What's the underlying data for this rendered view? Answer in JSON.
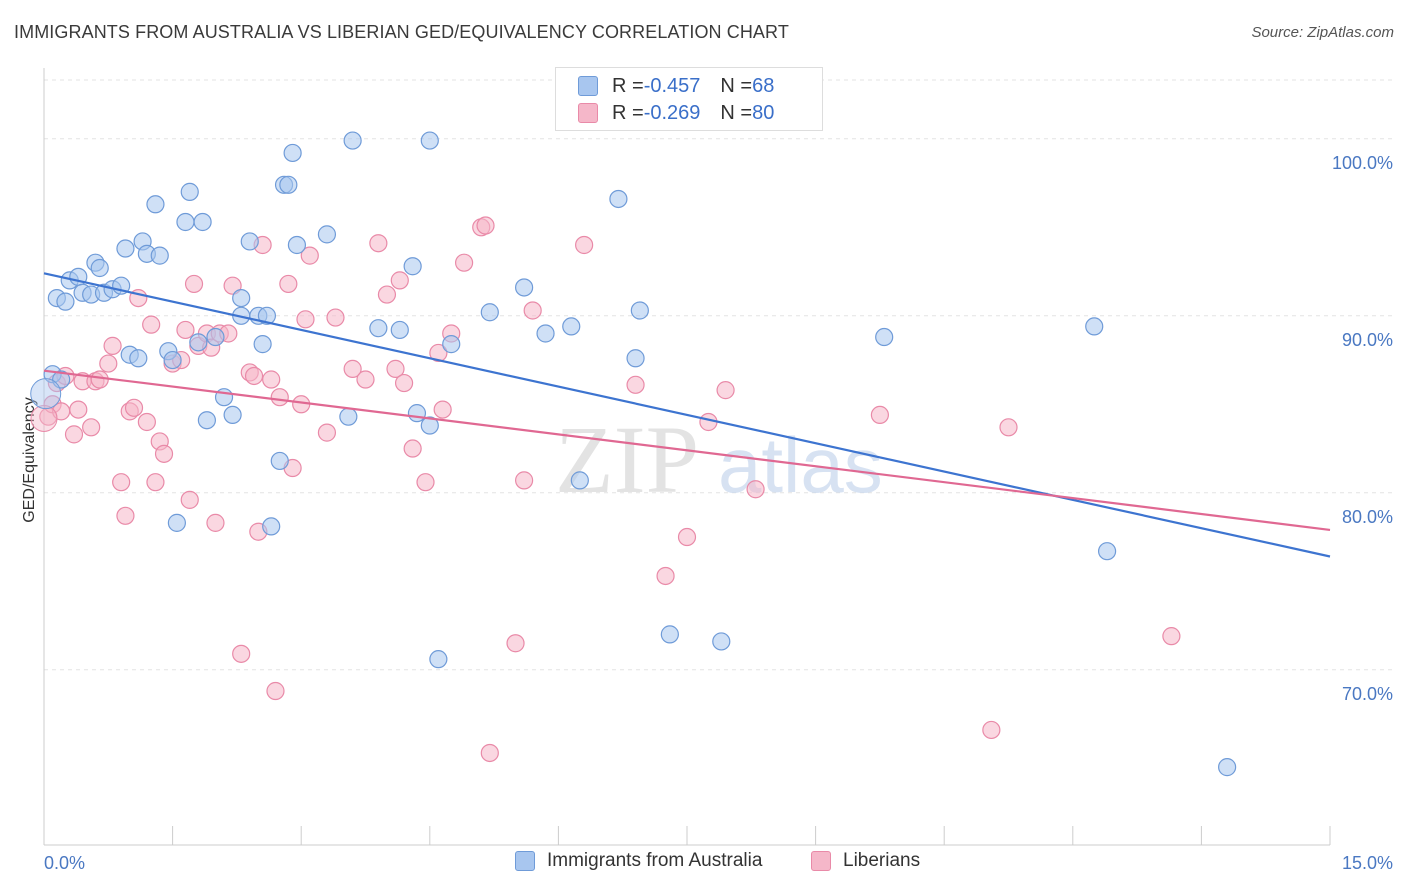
{
  "header": {
    "title": "IMMIGRANTS FROM AUSTRALIA VS LIBERIAN GED/EQUIVALENCY CORRELATION CHART",
    "source": "Source: ZipAtlas.com"
  },
  "watermark": {
    "zip": "ZIP",
    "atlas": "atlas"
  },
  "legend_top": [
    {
      "r_label": "R = ",
      "r_value": "-0.457",
      "n_label": "N = ",
      "n_value": "68"
    },
    {
      "r_label": "R = ",
      "r_value": "-0.269",
      "n_label": "N = ",
      "n_value": "80"
    }
  ],
  "legend_bottom": [
    {
      "label": "Immigrants from Australia"
    },
    {
      "label": "Liberians"
    }
  ],
  "colors": {
    "blue_fill": "#a8c6ef",
    "blue_stroke": "#6f9bd8",
    "blue_line": "#3d74d0",
    "pink_fill": "#f5b7c9",
    "pink_stroke": "#e98aa8",
    "pink_line": "#e06892",
    "tick_text": "#4a78c2",
    "grid": "#e3e3e3"
  },
  "chart_data": {
    "type": "scatter",
    "title": "IMMIGRANTS FROM AUSTRALIA VS LIBERIAN GED/EQUIVALENCY CORRELATION CHART",
    "xlabel": "",
    "ylabel": "GED/Equivalency",
    "xlim": [
      0,
      15
    ],
    "ylim": [
      60.1,
      104
    ],
    "x_tick_labels": [
      "0.0%",
      "15.0%"
    ],
    "y_ticks": [
      {
        "value": 100,
        "label": "100.0%"
      },
      {
        "value": 90,
        "label": "90.0%"
      },
      {
        "value": 80,
        "label": "80.0%"
      },
      {
        "value": 70,
        "label": "70.0%"
      }
    ],
    "series": [
      {
        "name": "Immigrants from Australia",
        "r": -0.457,
        "n": 68,
        "trend": {
          "x": [
            0,
            15
          ],
          "y": [
            92.4,
            76.4
          ]
        },
        "points": [
          [
            0.1,
            86.7
          ],
          [
            0.2,
            86.4
          ],
          [
            0.15,
            91.0
          ],
          [
            0.25,
            90.8
          ],
          [
            0.3,
            92.0
          ],
          [
            0.4,
            92.2
          ],
          [
            0.45,
            91.3
          ],
          [
            0.55,
            91.2
          ],
          [
            0.6,
            93.0
          ],
          [
            0.65,
            92.7
          ],
          [
            0.7,
            91.3
          ],
          [
            0.8,
            91.5
          ],
          [
            0.9,
            91.7
          ],
          [
            0.95,
            93.8
          ],
          [
            1.0,
            87.8
          ],
          [
            1.1,
            87.6
          ],
          [
            1.15,
            94.2
          ],
          [
            1.2,
            93.5
          ],
          [
            1.3,
            96.3
          ],
          [
            1.35,
            93.4
          ],
          [
            1.45,
            88.0
          ],
          [
            1.5,
            87.5
          ],
          [
            1.55,
            78.3
          ],
          [
            1.65,
            95.3
          ],
          [
            1.7,
            97.0
          ],
          [
            1.8,
            88.5
          ],
          [
            1.85,
            95.3
          ],
          [
            1.9,
            84.1
          ],
          [
            2.0,
            88.8
          ],
          [
            2.1,
            85.4
          ],
          [
            2.2,
            84.4
          ],
          [
            2.3,
            90.0
          ],
          [
            2.3,
            91.0
          ],
          [
            2.4,
            94.2
          ],
          [
            2.5,
            90.0
          ],
          [
            2.55,
            88.4
          ],
          [
            2.6,
            90.0
          ],
          [
            2.65,
            78.1
          ],
          [
            2.75,
            81.8
          ],
          [
            2.8,
            97.4
          ],
          [
            2.85,
            97.4
          ],
          [
            2.9,
            99.2
          ],
          [
            2.95,
            94.0
          ],
          [
            3.3,
            94.6
          ],
          [
            3.55,
            84.3
          ],
          [
            3.6,
            99.9
          ],
          [
            3.9,
            89.3
          ],
          [
            4.15,
            89.2
          ],
          [
            4.3,
            92.8
          ],
          [
            4.35,
            84.5
          ],
          [
            4.5,
            83.8
          ],
          [
            4.5,
            99.9
          ],
          [
            4.6,
            70.6
          ],
          [
            4.75,
            88.4
          ],
          [
            5.2,
            90.2
          ],
          [
            5.6,
            91.6
          ],
          [
            5.85,
            89.0
          ],
          [
            6.15,
            89.4
          ],
          [
            6.25,
            80.7
          ],
          [
            6.7,
            96.6
          ],
          [
            6.9,
            87.6
          ],
          [
            6.95,
            90.3
          ],
          [
            7.3,
            72.0
          ],
          [
            7.9,
            71.6
          ],
          [
            9.8,
            88.8
          ],
          [
            12.25,
            89.4
          ],
          [
            12.4,
            76.7
          ],
          [
            13.8,
            64.5
          ]
        ]
      },
      {
        "name": "Liberians",
        "r": -0.269,
        "n": 80,
        "trend": {
          "x": [
            0,
            15
          ],
          "y": [
            86.9,
            77.9
          ]
        },
        "points": [
          [
            0.05,
            84.3
          ],
          [
            0.1,
            85.0
          ],
          [
            0.15,
            86.2
          ],
          [
            0.2,
            84.6
          ],
          [
            0.25,
            86.6
          ],
          [
            0.35,
            83.3
          ],
          [
            0.4,
            84.7
          ],
          [
            0.45,
            86.3
          ],
          [
            0.55,
            83.7
          ],
          [
            0.6,
            86.3
          ],
          [
            0.65,
            86.4
          ],
          [
            0.75,
            87.3
          ],
          [
            0.8,
            88.3
          ],
          [
            0.9,
            80.6
          ],
          [
            0.95,
            78.7
          ],
          [
            1.0,
            84.6
          ],
          [
            1.05,
            84.8
          ],
          [
            1.1,
            91.0
          ],
          [
            1.2,
            84.0
          ],
          [
            1.25,
            89.5
          ],
          [
            1.3,
            80.6
          ],
          [
            1.35,
            82.9
          ],
          [
            1.4,
            82.2
          ],
          [
            1.5,
            87.3
          ],
          [
            1.6,
            87.5
          ],
          [
            1.65,
            89.2
          ],
          [
            1.7,
            79.6
          ],
          [
            1.75,
            91.8
          ],
          [
            1.8,
            88.3
          ],
          [
            1.9,
            89.0
          ],
          [
            1.95,
            88.2
          ],
          [
            2.0,
            78.3
          ],
          [
            2.05,
            89.0
          ],
          [
            2.15,
            89.0
          ],
          [
            2.2,
            91.7
          ],
          [
            2.3,
            70.9
          ],
          [
            2.4,
            86.8
          ],
          [
            2.45,
            86.6
          ],
          [
            2.5,
            77.8
          ],
          [
            2.55,
            94.0
          ],
          [
            2.65,
            86.4
          ],
          [
            2.7,
            68.8
          ],
          [
            2.75,
            85.4
          ],
          [
            2.85,
            91.8
          ],
          [
            2.9,
            81.4
          ],
          [
            3.0,
            85.0
          ],
          [
            3.05,
            89.8
          ],
          [
            3.1,
            93.4
          ],
          [
            3.3,
            83.4
          ],
          [
            3.4,
            89.9
          ],
          [
            3.6,
            87.0
          ],
          [
            3.75,
            86.4
          ],
          [
            3.9,
            94.1
          ],
          [
            4.0,
            91.2
          ],
          [
            4.1,
            87.0
          ],
          [
            4.15,
            92.0
          ],
          [
            4.2,
            86.2
          ],
          [
            4.3,
            82.5
          ],
          [
            4.45,
            80.6
          ],
          [
            4.6,
            87.9
          ],
          [
            4.65,
            84.7
          ],
          [
            4.75,
            89.0
          ],
          [
            4.9,
            93.0
          ],
          [
            5.1,
            95.0
          ],
          [
            5.15,
            95.1
          ],
          [
            5.2,
            65.3
          ],
          [
            5.5,
            71.5
          ],
          [
            5.6,
            80.7
          ],
          [
            5.7,
            90.3
          ],
          [
            6.3,
            94.0
          ],
          [
            6.9,
            86.1
          ],
          [
            7.25,
            75.3
          ],
          [
            7.5,
            77.5
          ],
          [
            7.75,
            84.0
          ],
          [
            7.95,
            85.8
          ],
          [
            8.3,
            80.2
          ],
          [
            9.75,
            84.4
          ],
          [
            11.05,
            66.6
          ],
          [
            11.25,
            83.7
          ],
          [
            13.15,
            71.9
          ]
        ]
      }
    ]
  }
}
